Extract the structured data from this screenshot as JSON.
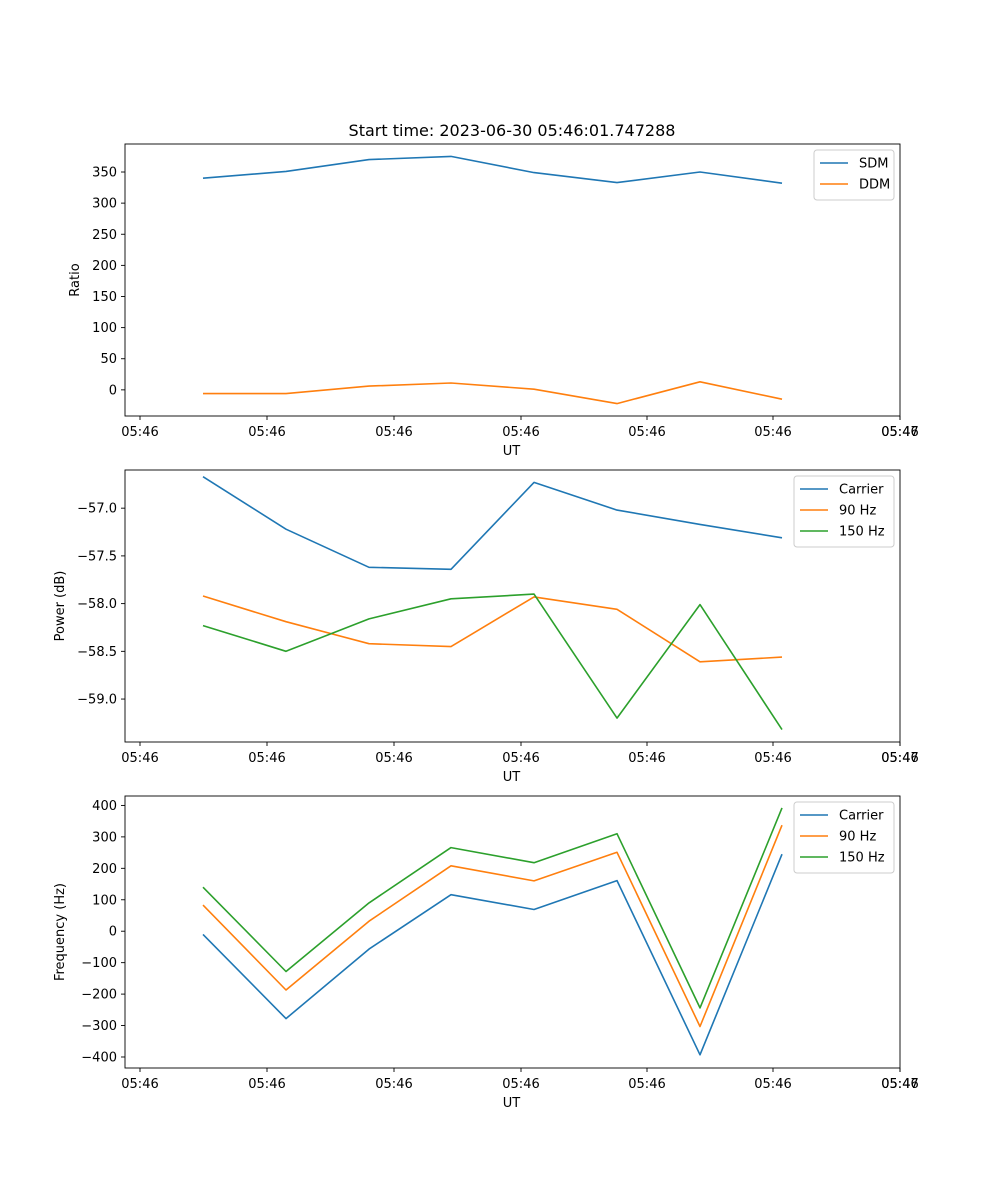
{
  "figure": {
    "title": "Start time: 2023-06-30 05:46:01.747288"
  },
  "colors": {
    "blue": "#1f77b4",
    "orange": "#ff7f0e",
    "green": "#2ca02c"
  },
  "chart_data": [
    {
      "type": "line",
      "ylabel": "Ratio",
      "xlabel": "UT",
      "xticks": [
        "05:46",
        "05:46",
        "05:46",
        "05:46",
        "05:46",
        "05:46",
        "05:46"
      ],
      "xticks_last": "05:47",
      "ylim": [
        -42,
        395
      ],
      "yticks": [
        0,
        50,
        100,
        150,
        200,
        250,
        300,
        350
      ],
      "grid": false,
      "legend": "top-right",
      "series": [
        {
          "name": "SDM",
          "color": "blue",
          "values": [
            340,
            351,
            370,
            375,
            349,
            333,
            350,
            332
          ]
        },
        {
          "name": "DDM",
          "color": "orange",
          "values": [
            -6,
            -6,
            6,
            11,
            1,
            -22,
            13,
            -15
          ]
        }
      ]
    },
    {
      "type": "line",
      "ylabel": "Power (dB)",
      "xlabel": "UT",
      "xticks": [
        "05:46",
        "05:46",
        "05:46",
        "05:46",
        "05:46",
        "05:46",
        "05:46"
      ],
      "xticks_last": "05:47",
      "ylim": [
        -59.45,
        -56.6
      ],
      "yticks": [
        -59.0,
        -58.5,
        -58.0,
        -57.5,
        -57.0
      ],
      "ytick_labels": [
        "−59.0",
        "−58.5",
        "−58.0",
        "−57.5",
        "−57.0"
      ],
      "grid": false,
      "legend": "top-right",
      "series": [
        {
          "name": "Carrier",
          "color": "blue",
          "values": [
            -56.67,
            -57.22,
            -57.62,
            -57.64,
            -56.73,
            -57.02,
            -57.17,
            -57.31
          ]
        },
        {
          "name": "90 Hz",
          "color": "orange",
          "values": [
            -57.92,
            -58.19,
            -58.42,
            -58.45,
            -57.93,
            -58.06,
            -58.61,
            -58.56
          ]
        },
        {
          "name": "150 Hz",
          "color": "green",
          "values": [
            -58.23,
            -58.5,
            -58.16,
            -57.95,
            -57.9,
            -59.2,
            -58.01,
            -59.32
          ]
        }
      ]
    },
    {
      "type": "line",
      "ylabel": "Frequency (Hz)",
      "xlabel": "UT",
      "xticks": [
        "05:46",
        "05:46",
        "05:46",
        "05:46",
        "05:46",
        "05:46",
        "05:46"
      ],
      "xticks_last": "05:47",
      "ylim": [
        -435,
        430
      ],
      "yticks": [
        -400,
        -300,
        -200,
        -100,
        0,
        100,
        200,
        300,
        400
      ],
      "ytick_labels": [
        "−400",
        "−300",
        "−200",
        "−100",
        "0",
        "100",
        "200",
        "300",
        "400"
      ],
      "grid": false,
      "legend": "top-right",
      "series": [
        {
          "name": "Carrier",
          "color": "blue",
          "values": [
            -10,
            -278,
            -57,
            116,
            69,
            161,
            -393,
            245
          ]
        },
        {
          "name": "90 Hz",
          "color": "orange",
          "values": [
            83,
            -187,
            32,
            208,
            160,
            251,
            -303,
            337
          ]
        },
        {
          "name": "150 Hz",
          "color": "green",
          "values": [
            140,
            -128,
            90,
            266,
            218,
            310,
            -244,
            392
          ]
        }
      ]
    }
  ]
}
